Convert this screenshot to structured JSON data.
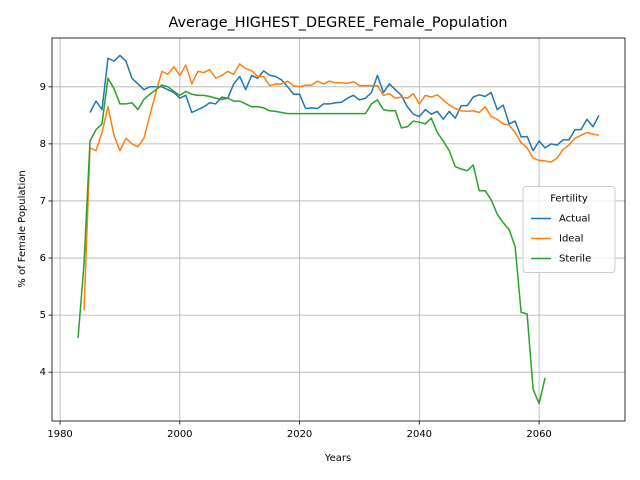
{
  "chart_data": {
    "type": "line",
    "title": "Average_HIGHEST_DEGREE_Female_Population",
    "xlabel": "Years",
    "ylabel": "% of Female Population",
    "legend_title": "Fertility",
    "legend": "center right",
    "grid": true,
    "xlim": [
      1978.65,
      2074.35
    ],
    "ylim": [
      3.145,
      9.855
    ],
    "xticks": [
      1980,
      2000,
      2020,
      2040,
      2060
    ],
    "yticks": [
      4,
      5,
      6,
      7,
      8,
      9
    ],
    "x": [
      1983,
      1984,
      1985,
      1986,
      1987,
      1988,
      1989,
      1990,
      1991,
      1992,
      1993,
      1994,
      1995,
      1996,
      1997,
      1998,
      1999,
      2000,
      2001,
      2002,
      2003,
      2004,
      2005,
      2006,
      2007,
      2008,
      2009,
      2010,
      2011,
      2012,
      2013,
      2014,
      2015,
      2016,
      2017,
      2018,
      2019,
      2020,
      2021,
      2022,
      2023,
      2024,
      2025,
      2026,
      2027,
      2028,
      2029,
      2030,
      2031,
      2032,
      2033,
      2034,
      2035,
      2036,
      2037,
      2038,
      2039,
      2040,
      2041,
      2042,
      2043,
      2044,
      2045,
      2046,
      2047,
      2048,
      2049,
      2050,
      2051,
      2052,
      2053,
      2054,
      2055,
      2056,
      2057,
      2058,
      2059,
      2060,
      2061,
      2062,
      2063,
      2064,
      2065,
      2066,
      2067,
      2068,
      2069,
      2070
    ],
    "series": [
      {
        "name": "Actual",
        "color": "#1f77b4",
        "values": [
          null,
          null,
          8.55,
          8.75,
          8.6,
          9.5,
          9.45,
          9.55,
          9.45,
          9.15,
          9.05,
          8.95,
          9.0,
          9.0,
          9.0,
          8.95,
          8.9,
          8.8,
          8.85,
          8.55,
          8.6,
          8.65,
          8.72,
          8.7,
          8.82,
          8.8,
          9.05,
          9.18,
          8.95,
          9.2,
          9.15,
          9.28,
          9.2,
          9.18,
          9.12,
          9.0,
          8.87,
          8.87,
          8.62,
          8.63,
          8.62,
          8.7,
          8.7,
          8.72,
          8.73,
          8.8,
          8.85,
          8.77,
          8.8,
          8.9,
          9.2,
          8.9,
          9.05,
          8.95,
          8.85,
          8.65,
          8.52,
          8.48,
          8.6,
          8.52,
          8.57,
          8.43,
          8.57,
          8.45,
          8.67,
          8.67,
          8.82,
          8.86,
          8.83,
          8.9,
          8.6,
          8.68,
          8.35,
          8.4,
          8.12,
          8.13,
          7.88,
          8.05,
          7.93,
          8.0,
          7.98,
          8.07,
          8.07,
          8.25,
          8.25,
          8.43,
          8.3,
          8.5
        ]
      },
      {
        "name": "Ideal",
        "color": "#ff7f0e",
        "values": [
          null,
          5.08,
          7.93,
          7.88,
          8.2,
          8.65,
          8.15,
          7.88,
          8.1,
          8.0,
          7.95,
          8.1,
          8.5,
          8.9,
          9.27,
          9.22,
          9.35,
          9.2,
          9.38,
          9.05,
          9.27,
          9.25,
          9.3,
          9.15,
          9.2,
          9.27,
          9.22,
          9.4,
          9.32,
          9.28,
          9.18,
          9.18,
          9.02,
          9.05,
          9.05,
          9.1,
          9.02,
          9.0,
          9.03,
          9.03,
          9.1,
          9.05,
          9.1,
          9.07,
          9.07,
          9.06,
          9.09,
          9.02,
          9.02,
          9.02,
          9.02,
          8.85,
          8.88,
          8.8,
          8.82,
          8.8,
          8.88,
          8.7,
          8.85,
          8.82,
          8.86,
          8.77,
          8.68,
          8.62,
          8.58,
          8.57,
          8.58,
          8.55,
          8.65,
          8.48,
          8.43,
          8.35,
          8.33,
          8.2,
          8.02,
          7.93,
          7.75,
          7.71,
          7.7,
          7.68,
          7.75,
          7.9,
          7.98,
          8.1,
          8.15,
          8.2,
          8.17,
          8.15
        ]
      },
      {
        "name": "Sterile",
        "color": "#2ca02c",
        "values": [
          4.6,
          5.9,
          8.05,
          8.25,
          8.35,
          9.15,
          8.97,
          8.7,
          8.7,
          8.72,
          8.6,
          8.78,
          8.87,
          8.95,
          9.03,
          9.0,
          8.92,
          8.85,
          8.92,
          8.87,
          8.85,
          8.85,
          8.83,
          8.8,
          8.78,
          8.8,
          8.75,
          8.75,
          8.7,
          8.65,
          8.65,
          8.63,
          8.58,
          8.57,
          8.55,
          8.53,
          8.53,
          8.53,
          8.53,
          8.53,
          8.53,
          8.53,
          8.53,
          8.53,
          8.53,
          8.53,
          8.53,
          8.53,
          8.53,
          8.7,
          8.77,
          8.6,
          8.58,
          8.58,
          8.28,
          8.3,
          8.4,
          8.38,
          8.35,
          8.45,
          8.2,
          8.05,
          7.88,
          7.6,
          7.56,
          7.53,
          7.63,
          7.18,
          7.18,
          7.02,
          6.77,
          6.62,
          6.5,
          6.2,
          5.05,
          5.02,
          3.7,
          3.45,
          3.9,
          null,
          null,
          null,
          null,
          null,
          null,
          null,
          null,
          null
        ]
      }
    ]
  }
}
